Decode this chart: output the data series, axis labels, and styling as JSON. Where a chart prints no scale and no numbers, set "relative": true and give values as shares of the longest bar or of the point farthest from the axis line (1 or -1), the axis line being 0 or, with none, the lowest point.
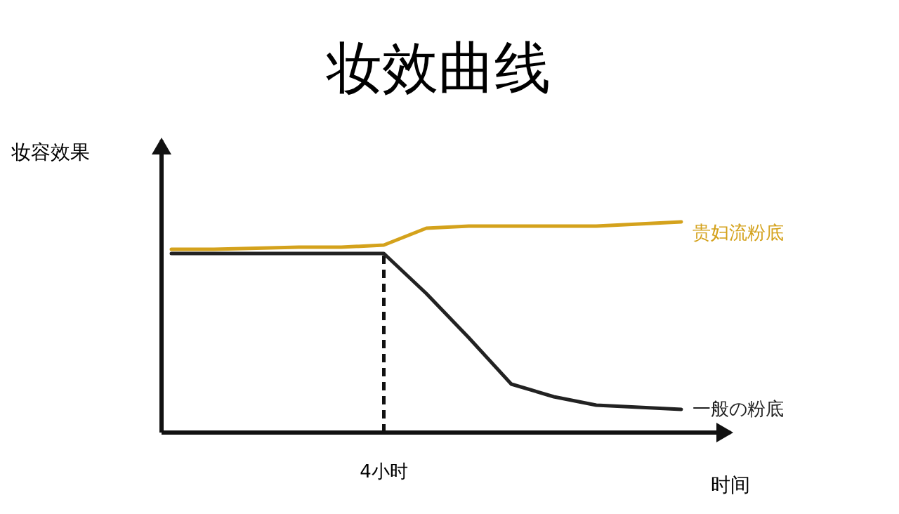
{
  "chart_data": {
    "type": "line",
    "title": "妆效曲线",
    "xlabel": "时间",
    "ylabel": "妆容效果",
    "relative": true,
    "categories": [
      null,
      null,
      null,
      null,
      null,
      null,
      null,
      null,
      null,
      null,
      null,
      null,
      null
    ],
    "series": [
      {
        "name": "贵妇流粉底",
        "color": "#d4a21c",
        "values": [
          0.87,
          0.87,
          0.875,
          0.88,
          0.88,
          0.89,
          0.97,
          0.98,
          0.98,
          0.98,
          0.98,
          0.99,
          1
        ]
      },
      {
        "name": "一般の粉底",
        "color": "#222222",
        "values": [
          0.85,
          0.85,
          0.85,
          0.85,
          0.85,
          0.85,
          0.66,
          0.45,
          0.23,
          0.17,
          0.13,
          0.12,
          0.11
        ]
      }
    ],
    "annotations": [
      "4小时"
    ],
    "legend": false,
    "marker": "none",
    "line_style": "solid"
  }
}
